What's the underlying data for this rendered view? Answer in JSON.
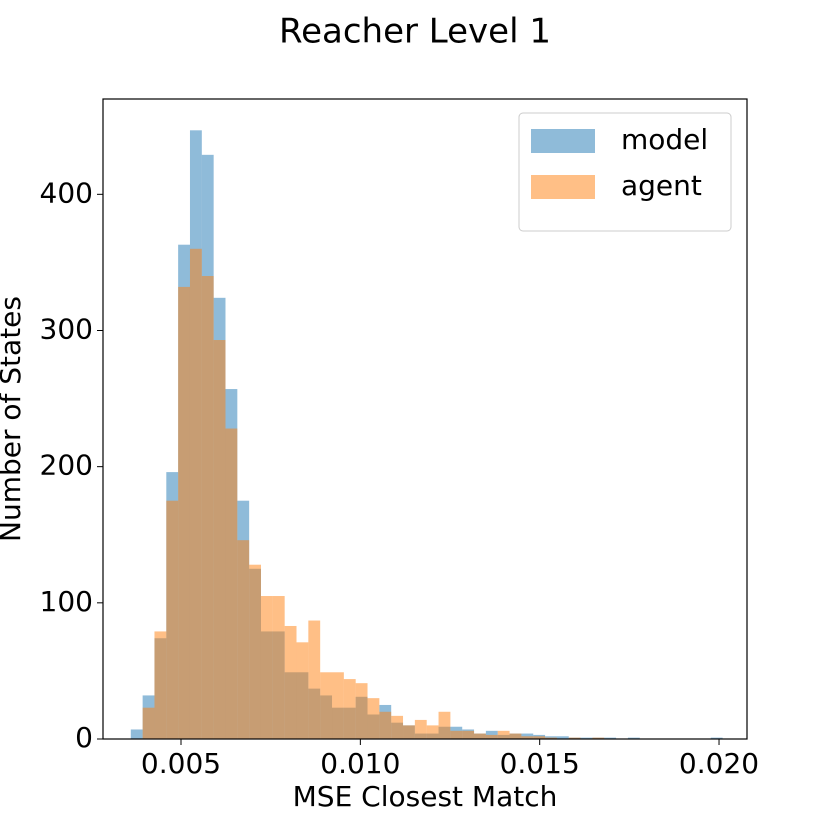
{
  "chart_data": {
    "type": "histogram",
    "title": "Reacher Level 1",
    "x_label": "MSE Closest Match",
    "y_label": "Number of States",
    "bins": [
      0.0036,
      0.00393,
      0.00426,
      0.00459,
      0.00492,
      0.00525,
      0.00558,
      0.00591,
      0.00624,
      0.00657,
      0.0069,
      0.00723,
      0.00756,
      0.00789,
      0.00822,
      0.00855,
      0.00888,
      0.00921,
      0.00954,
      0.00987,
      0.0102,
      0.01053,
      0.01086,
      0.01119,
      0.01152,
      0.01185,
      0.01218,
      0.01251,
      0.01284,
      0.01317,
      0.0135,
      0.01383,
      0.01416,
      0.01449,
      0.01482,
      0.01515,
      0.01548,
      0.01581,
      0.01614,
      0.01647,
      0.0168,
      0.01713,
      0.01746,
      0.01779,
      0.01812,
      0.01845,
      0.01878,
      0.01911,
      0.01944,
      0.01977,
      0.0201
    ],
    "series": [
      {
        "name": "model",
        "color": "#1f77b4",
        "values": [
          7,
          32,
          74,
          196,
          363,
          447,
          429,
          324,
          257,
          175,
          125,
          79,
          79,
          49,
          49,
          37,
          32,
          23,
          23,
          31,
          18,
          25,
          12,
          10,
          4,
          4,
          9,
          9,
          7,
          4,
          6,
          3,
          4,
          4,
          3,
          2,
          2,
          1,
          1,
          1,
          1,
          0,
          1,
          0,
          0,
          0,
          0,
          0,
          0,
          1
        ]
      },
      {
        "name": "agent",
        "color": "#ff7f0e",
        "values": [
          0,
          23,
          79,
          175,
          332,
          360,
          340,
          293,
          228,
          146,
          128,
          105,
          105,
          83,
          71,
          87,
          49,
          49,
          44,
          41,
          30,
          20,
          17,
          10,
          14,
          10,
          20,
          6,
          6,
          4,
          3,
          6,
          4,
          2,
          2,
          1,
          0,
          1,
          0,
          1,
          0,
          0,
          0,
          0,
          0,
          0,
          0,
          0,
          0,
          0
        ]
      }
    ],
    "alpha": 0.5,
    "xlim": [
      0.002825,
      0.02078
    ],
    "ylim": [
      0,
      470
    ],
    "xticks": [
      0.005,
      {
        "value": 0.01,
        "label": "0.010"
      },
      0.015,
      {
        "value": 0.02,
        "label": "0.020"
      }
    ],
    "yticks": [
      0,
      100,
      200,
      300,
      400
    ],
    "legend": "upper right"
  }
}
